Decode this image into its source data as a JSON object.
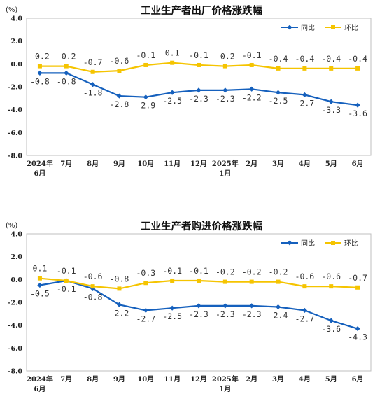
{
  "chart_data": [
    {
      "type": "line",
      "title": "工业生产者出厂价格涨跌幅",
      "unit": "(%)",
      "ylim": [
        -8.0,
        4.0
      ],
      "yticks": [
        "4.0",
        "2.0",
        "0.0",
        "-2.0",
        "-4.0",
        "-6.0",
        "-8.0"
      ],
      "ytick_values": [
        4,
        2,
        0,
        -2,
        -4,
        -6,
        -8
      ],
      "categories": [
        [
          "2024年",
          "6月"
        ],
        [
          "7月"
        ],
        [
          "8月"
        ],
        [
          "9月"
        ],
        [
          "10月"
        ],
        [
          "11月"
        ],
        [
          "12月"
        ],
        [
          "2025年",
          "1月"
        ],
        [
          "2月"
        ],
        [
          "3月"
        ],
        [
          "4月"
        ],
        [
          "5月"
        ],
        [
          "6月"
        ]
      ],
      "legend_position": "top-right",
      "series": [
        {
          "name": "同比",
          "color": "#1560bd",
          "marker": "diamond",
          "values": [
            -0.8,
            -0.8,
            -1.8,
            -2.8,
            -2.9,
            -2.5,
            -2.3,
            -2.3,
            -2.2,
            -2.5,
            -2.7,
            -3.3,
            -3.6
          ],
          "labels": [
            "-0.8",
            "-0.8",
            "-1.8",
            "-2.8",
            "-2.9",
            "-2.5",
            "-2.3",
            "-2.3",
            "-2.2",
            "-2.5",
            "-2.7",
            "-3.3",
            "-3.6"
          ]
        },
        {
          "name": "环比",
          "color": "#f5c400",
          "marker": "square",
          "values": [
            -0.2,
            -0.2,
            -0.7,
            -0.6,
            -0.1,
            0.1,
            -0.1,
            -0.2,
            -0.1,
            -0.4,
            -0.4,
            -0.4,
            -0.4
          ],
          "labels": [
            "-0.2",
            "-0.2",
            "-0.7",
            "-0.6",
            "-0.1",
            "0.1",
            "-0.1",
            "-0.2",
            "-0.1",
            "-0.4",
            "-0.4",
            "-0.4",
            "-0.4"
          ]
        }
      ]
    },
    {
      "type": "line",
      "title": "工业生产者购进价格涨跌幅",
      "unit": "(%)",
      "ylim": [
        -8.0,
        4.0
      ],
      "yticks": [
        "4.0",
        "2.0",
        "0.0",
        "-2.0",
        "-4.0",
        "-6.0",
        "-8.0"
      ],
      "ytick_values": [
        4,
        2,
        0,
        -2,
        -4,
        -6,
        -8
      ],
      "categories": [
        [
          "2024年",
          "6月"
        ],
        [
          "7月"
        ],
        [
          "8月"
        ],
        [
          "9月"
        ],
        [
          "10月"
        ],
        [
          "11月"
        ],
        [
          "12月"
        ],
        [
          "2025年",
          "1月"
        ],
        [
          "2月"
        ],
        [
          "3月"
        ],
        [
          "4月"
        ],
        [
          "5月"
        ],
        [
          "6月"
        ]
      ],
      "legend_position": "top-right",
      "series": [
        {
          "name": "同比",
          "color": "#1560bd",
          "marker": "diamond",
          "values": [
            -0.5,
            -0.1,
            -0.8,
            -2.2,
            -2.7,
            -2.5,
            -2.3,
            -2.3,
            -2.3,
            -2.4,
            -2.7,
            -3.6,
            -4.3
          ],
          "labels": [
            "-0.5",
            "-0.1",
            "-0.8",
            "-2.2",
            "-2.7",
            "-2.5",
            "-2.3",
            "-2.3",
            "-2.3",
            "-2.4",
            "-2.7",
            "-3.6",
            "-4.3"
          ]
        },
        {
          "name": "环比",
          "color": "#f5c400",
          "marker": "square",
          "values": [
            0.1,
            -0.1,
            -0.6,
            -0.8,
            -0.3,
            -0.1,
            -0.1,
            -0.2,
            -0.2,
            -0.2,
            -0.6,
            -0.6,
            -0.7
          ],
          "labels": [
            "0.1",
            "-0.1",
            "-0.6",
            "-0.8",
            "-0.3",
            "-0.1",
            "-0.1",
            "-0.2",
            "-0.2",
            "-0.2",
            "-0.6",
            "-0.6",
            "-0.7"
          ]
        }
      ]
    }
  ]
}
